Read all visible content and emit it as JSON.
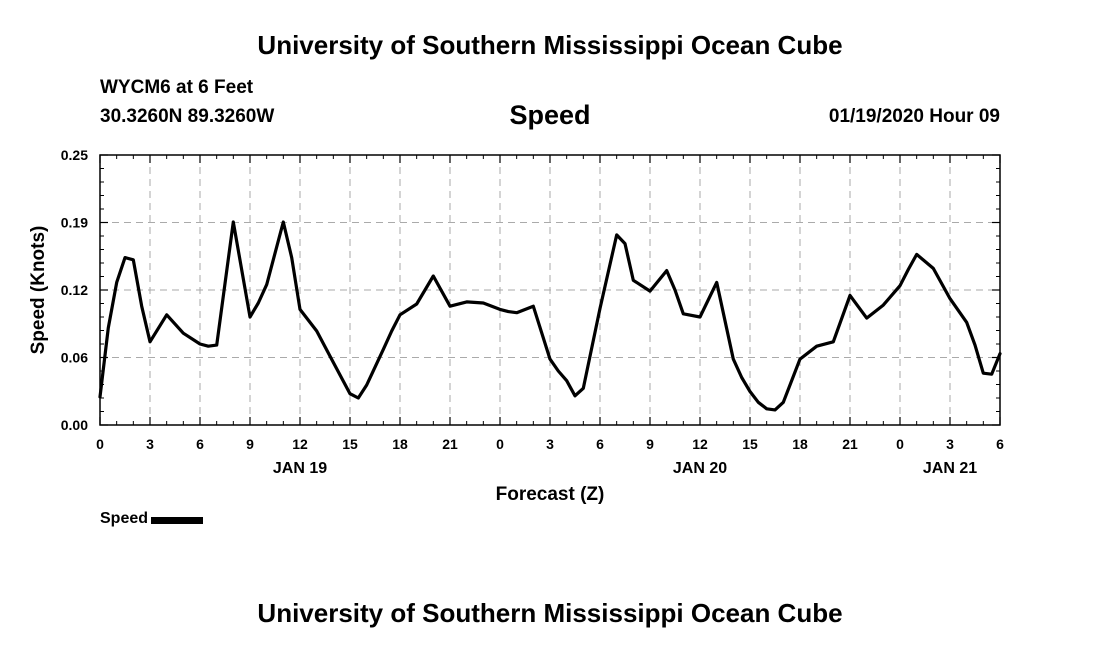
{
  "header": {
    "title": "University of Southern Mississippi Ocean Cube",
    "station": "WYCM6 at 6 Feet",
    "coordinates": "30.3260N 89.3260W",
    "datetime": "01/19/2020 Hour 09"
  },
  "footer": {
    "title": "University of Southern Mississippi Ocean Cube"
  },
  "legend": {
    "label": "Speed",
    "color": "#000000"
  },
  "chart_data": {
    "type": "line",
    "title": "Speed",
    "xlabel": "Forecast (Z)",
    "ylabel": "Speed (Knots)",
    "xlim": [
      0,
      54
    ],
    "ylim": [
      0,
      0.25
    ],
    "grid": true,
    "x_ticks": [
      0,
      3,
      6,
      9,
      12,
      15,
      18,
      21,
      24,
      27,
      30,
      33,
      36,
      39,
      42,
      45,
      48,
      51,
      54
    ],
    "x_tick_labels": [
      "0",
      "3",
      "6",
      "9",
      "12",
      "15",
      "18",
      "21",
      "0",
      "3",
      "6",
      "9",
      "12",
      "15",
      "18",
      "21",
      "0",
      "3",
      "6"
    ],
    "y_ticks": [
      0,
      0.0625,
      0.125,
      0.1875,
      0.25
    ],
    "y_tick_labels": [
      "0.00",
      "0.06",
      "0.12",
      "0.19",
      "0.25"
    ],
    "date_labels": [
      {
        "label": "JAN 19",
        "x": 12
      },
      {
        "label": "JAN 20",
        "x": 36
      },
      {
        "label": "JAN 21",
        "x": 51
      }
    ],
    "series": [
      {
        "name": "Speed",
        "color": "#000000",
        "x": [
          0,
          0.5,
          1,
          1.5,
          2,
          2.5,
          3,
          4,
          5,
          6,
          6.5,
          7,
          8,
          9,
          9.5,
          10,
          11,
          11.5,
          12,
          13,
          14,
          15,
          15.5,
          16,
          17,
          17.5,
          18,
          19,
          20,
          21,
          22,
          23,
          24,
          24.5,
          25,
          26,
          27,
          27.5,
          28,
          28.5,
          29,
          30,
          31,
          31.5,
          32,
          33,
          34,
          34.5,
          35,
          36,
          37,
          38,
          38.5,
          39,
          39.5,
          40,
          40.5,
          41,
          42,
          43,
          44,
          45,
          46,
          47,
          48,
          48.5,
          49,
          50,
          51,
          52,
          52.5,
          53,
          53.5,
          54
        ],
        "values": [
          0.026,
          0.09,
          0.132,
          0.155,
          0.153,
          0.11,
          0.077,
          0.102,
          0.085,
          0.075,
          0.073,
          0.074,
          0.188,
          0.1,
          0.113,
          0.13,
          0.188,
          0.155,
          0.107,
          0.087,
          0.058,
          0.029,
          0.025,
          0.037,
          0.07,
          0.087,
          0.102,
          0.112,
          0.138,
          0.11,
          0.114,
          0.113,
          0.107,
          0.105,
          0.104,
          0.11,
          0.061,
          0.05,
          0.041,
          0.027,
          0.034,
          0.108,
          0.176,
          0.168,
          0.134,
          0.124,
          0.143,
          0.125,
          0.103,
          0.1,
          0.132,
          0.061,
          0.044,
          0.031,
          0.021,
          0.015,
          0.014,
          0.021,
          0.061,
          0.073,
          0.077,
          0.12,
          0.099,
          0.111,
          0.129,
          0.144,
          0.158,
          0.145,
          0.117,
          0.095,
          0.074,
          0.048,
          0.047,
          0.066
        ]
      }
    ]
  }
}
